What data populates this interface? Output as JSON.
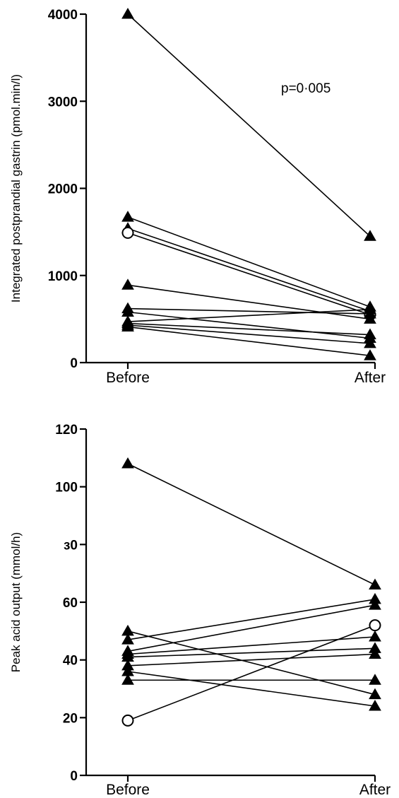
{
  "chart_data": [
    {
      "type": "line",
      "categories": [
        "Before",
        "After"
      ],
      "ylabel": "Integrated postprandial gastrin (pmol.min/l)",
      "ylim": [
        0,
        4000
      ],
      "yticks": [
        "0",
        "1000",
        "2000",
        "3000",
        "4000"
      ],
      "annotation": "p=0·005",
      "series": [
        {
          "values": [
            4000,
            1450
          ],
          "marker": "triangle"
        },
        {
          "values": [
            1670,
            640
          ],
          "marker": "triangle"
        },
        {
          "values": [
            1540,
            590
          ],
          "marker": "triangle"
        },
        {
          "values": [
            1490,
            550
          ],
          "marker": "circle"
        },
        {
          "values": [
            890,
            500
          ],
          "marker": "triangle"
        },
        {
          "values": [
            620,
            560
          ],
          "marker": "triangle"
        },
        {
          "values": [
            580,
            280
          ],
          "marker": "triangle"
        },
        {
          "values": [
            470,
            610
          ],
          "marker": "triangle"
        },
        {
          "values": [
            450,
            320
          ],
          "marker": "triangle"
        },
        {
          "values": [
            430,
            220
          ],
          "marker": "triangle"
        },
        {
          "values": [
            410,
            80
          ],
          "marker": "triangle"
        }
      ]
    },
    {
      "type": "line",
      "categories": [
        "Before",
        "After"
      ],
      "ylabel": "Peak acid output (mmol/h)",
      "ylim": [
        0,
        120
      ],
      "yticks": [
        "0",
        "20",
        "40",
        "60",
        "ɜ0",
        "100",
        "120"
      ],
      "series": [
        {
          "values": [
            108,
            66
          ],
          "marker": "triangle"
        },
        {
          "values": [
            50,
            28
          ],
          "marker": "triangle"
        },
        {
          "values": [
            47,
            61
          ],
          "marker": "triangle"
        },
        {
          "values": [
            43,
            59
          ],
          "marker": "triangle"
        },
        {
          "values": [
            42,
            48
          ],
          "marker": "triangle"
        },
        {
          "values": [
            41,
            44
          ],
          "marker": "triangle"
        },
        {
          "values": [
            38,
            42
          ],
          "marker": "triangle"
        },
        {
          "values": [
            36,
            24
          ],
          "marker": "triangle"
        },
        {
          "values": [
            33,
            33
          ],
          "marker": "triangle"
        },
        {
          "values": [
            19,
            52
          ],
          "marker": "circle"
        }
      ]
    }
  ]
}
